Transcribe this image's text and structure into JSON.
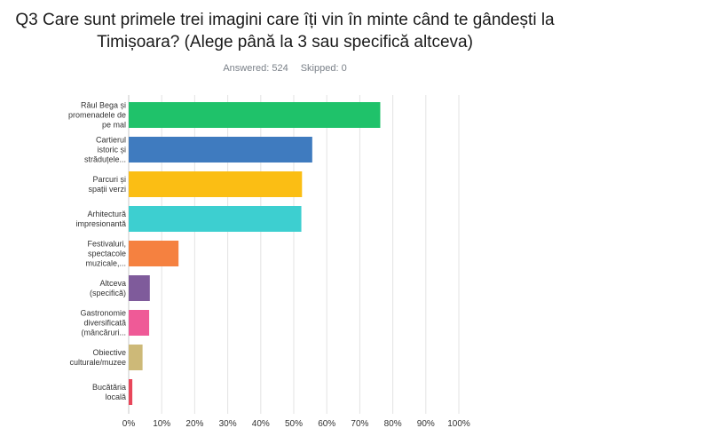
{
  "question": {
    "line1": "Q3 Care sunt primele trei imagini care îți vin în minte când te gândești la",
    "line2": "Timișoara? (Alege până la 3 sau specifică altceva)"
  },
  "stats": {
    "answered": "Answered: 524",
    "skipped": "Skipped: 0"
  },
  "chart_data": {
    "type": "bar",
    "orientation": "horizontal",
    "categories": [
      [
        "Râul Bega și",
        "promenadele de",
        "pe mal"
      ],
      [
        "Cartierul",
        "istoric și",
        "străduțele..."
      ],
      [
        "Parcuri și",
        "spații verzi"
      ],
      [
        "Arhitectură",
        "impresionantă"
      ],
      [
        "Festivaluri,",
        "spectacole",
        "muzicale,..."
      ],
      [
        "Altceva",
        "(specifică)"
      ],
      [
        "Gastronomie",
        "diversificată",
        "(mâncăruri..."
      ],
      [
        "Obiective",
        "culturale/muzee"
      ],
      [
        "Bucătăria",
        "locală"
      ]
    ],
    "values": [
      76.2,
      55.6,
      52.5,
      52.3,
      15.1,
      6.4,
      6.2,
      4.2,
      1.1
    ],
    "colors": [
      "#1fc26a",
      "#3f7bbf",
      "#fbbe14",
      "#3dcfd0",
      "#f58140",
      "#7f5b9b",
      "#ef5a97",
      "#cdb978",
      "#e8465a"
    ],
    "xlim": [
      0,
      100
    ],
    "ticks": [
      "0%",
      "10%",
      "20%",
      "30%",
      "40%",
      "50%",
      "60%",
      "70%",
      "80%",
      "90%",
      "100%"
    ],
    "grid": true,
    "gridColor": "#e3e3e3"
  }
}
